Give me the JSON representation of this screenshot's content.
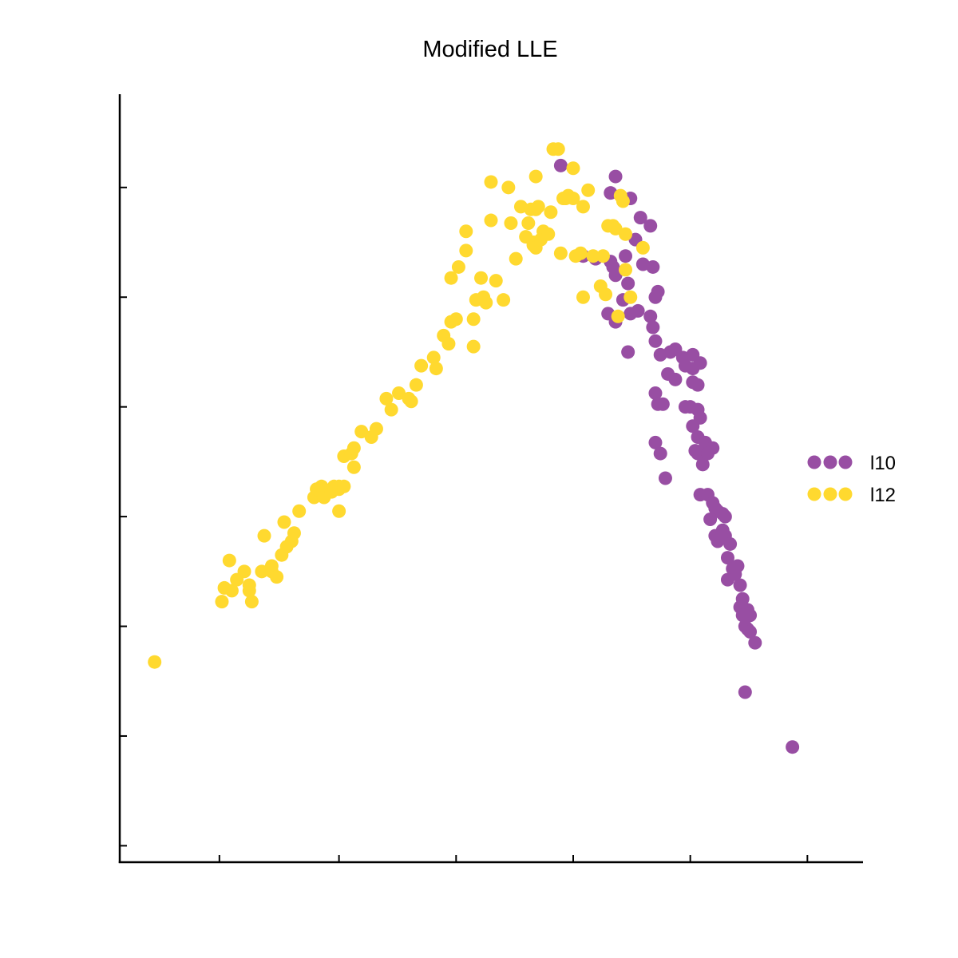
{
  "chart_data": {
    "type": "scatter",
    "title": "Modified LLE",
    "xlabel": "",
    "ylabel": "",
    "xlim": [
      -0.085,
      0.064
    ],
    "ylim": [
      -0.0545,
      0.0855
    ],
    "x_ticks": [
      -0.065,
      -0.041,
      -0.0175,
      0.006,
      0.0295,
      0.053
    ],
    "y_ticks": [
      -0.0515,
      -0.0315,
      -0.0115,
      0.0085,
      0.0285,
      0.0485,
      0.0685
    ],
    "show_tick_labels": false,
    "grid": false,
    "legend_position": "center-right",
    "series": [
      {
        "name": "l10",
        "color": "#984ea3",
        "points": [
          [
            0.0035,
            0.0725
          ],
          [
            0.0145,
            0.0705
          ],
          [
            0.0135,
            0.0675
          ],
          [
            0.0175,
            0.0665
          ],
          [
            0.0195,
            0.063
          ],
          [
            0.0215,
            0.0615
          ],
          [
            0.0185,
            0.059
          ],
          [
            0.008,
            0.056
          ],
          [
            0.0105,
            0.0555
          ],
          [
            0.0135,
            0.055
          ],
          [
            0.0165,
            0.056
          ],
          [
            0.02,
            0.0545
          ],
          [
            0.022,
            0.054
          ],
          [
            0.014,
            0.054
          ],
          [
            0.017,
            0.051
          ],
          [
            0.0145,
            0.0525
          ],
          [
            0.023,
            0.0495
          ],
          [
            0.0225,
            0.0485
          ],
          [
            0.016,
            0.048
          ],
          [
            0.0175,
            0.0455
          ],
          [
            0.019,
            0.046
          ],
          [
            0.013,
            0.0455
          ],
          [
            0.0145,
            0.044
          ],
          [
            0.0215,
            0.045
          ],
          [
            0.022,
            0.043
          ],
          [
            0.0225,
            0.0405
          ],
          [
            0.017,
            0.0385
          ],
          [
            0.0235,
            0.038
          ],
          [
            0.0255,
            0.0385
          ],
          [
            0.0265,
            0.039
          ],
          [
            0.028,
            0.0375
          ],
          [
            0.03,
            0.038
          ],
          [
            0.0285,
            0.036
          ],
          [
            0.03,
            0.0355
          ],
          [
            0.0315,
            0.0365
          ],
          [
            0.025,
            0.0345
          ],
          [
            0.0225,
            0.031
          ],
          [
            0.023,
            0.029
          ],
          [
            0.024,
            0.029
          ],
          [
            0.0265,
            0.0335
          ],
          [
            0.03,
            0.033
          ],
          [
            0.031,
            0.0325
          ],
          [
            0.0285,
            0.0285
          ],
          [
            0.0295,
            0.0285
          ],
          [
            0.031,
            0.028
          ],
          [
            0.0315,
            0.0265
          ],
          [
            0.03,
            0.025
          ],
          [
            0.031,
            0.023
          ],
          [
            0.0325,
            0.022
          ],
          [
            0.0305,
            0.0205
          ],
          [
            0.031,
            0.02
          ],
          [
            0.0315,
            0.02
          ],
          [
            0.034,
            0.021
          ],
          [
            0.033,
            0.02
          ],
          [
            0.0225,
            0.022
          ],
          [
            0.0235,
            0.02
          ],
          [
            0.0245,
            0.0155
          ],
          [
            0.032,
            0.018
          ],
          [
            0.0315,
            0.0125
          ],
          [
            0.033,
            0.0125
          ],
          [
            0.034,
            0.011
          ],
          [
            0.0345,
            0.01
          ],
          [
            0.035,
            0.0095
          ],
          [
            0.036,
            0.009
          ],
          [
            0.0365,
            0.0085
          ],
          [
            0.0335,
            0.008
          ],
          [
            0.036,
            0.006
          ],
          [
            0.0345,
            0.005
          ],
          [
            0.0365,
            0.005
          ],
          [
            0.035,
            0.004
          ],
          [
            0.0375,
            0.0035
          ],
          [
            0.037,
            0.001
          ],
          [
            0.038,
            -0.001
          ],
          [
            0.0385,
            -0.002
          ],
          [
            0.039,
            -0.0005
          ],
          [
            0.037,
            -0.003
          ],
          [
            0.0395,
            -0.004
          ],
          [
            0.04,
            -0.0065
          ],
          [
            0.0395,
            -0.008
          ],
          [
            0.041,
            -0.0085
          ],
          [
            0.04,
            -0.0095
          ],
          [
            0.0415,
            -0.0095
          ],
          [
            0.0405,
            -0.0115
          ],
          [
            0.041,
            -0.012
          ],
          [
            0.0415,
            -0.0125
          ],
          [
            0.0425,
            -0.0145
          ],
          [
            0.0405,
            -0.0235
          ],
          [
            0.05,
            -0.0335
          ]
        ]
      },
      {
        "name": "l12",
        "color": "#ffd92f",
        "points": [
          [
            -0.078,
            -0.018
          ],
          [
            -0.0645,
            -0.007
          ],
          [
            -0.064,
            -0.0045
          ],
          [
            -0.0625,
            -0.005
          ],
          [
            -0.063,
            0.0005
          ],
          [
            -0.0615,
            -0.003
          ],
          [
            -0.06,
            -0.0015
          ],
          [
            -0.059,
            -0.004
          ],
          [
            -0.059,
            -0.005
          ],
          [
            -0.0585,
            -0.007
          ],
          [
            -0.0565,
            -0.0015
          ],
          [
            -0.0545,
            -0.0015
          ],
          [
            -0.056,
            0.005
          ],
          [
            -0.0545,
            -0.0005
          ],
          [
            -0.0535,
            -0.0025
          ],
          [
            -0.0525,
            0.0015
          ],
          [
            -0.0515,
            0.003
          ],
          [
            -0.052,
            0.0075
          ],
          [
            -0.0505,
            0.004
          ],
          [
            -0.05,
            0.0055
          ],
          [
            -0.049,
            0.0095
          ],
          [
            -0.046,
            0.012
          ],
          [
            -0.0455,
            0.0135
          ],
          [
            -0.044,
            0.012
          ],
          [
            -0.0445,
            0.014
          ],
          [
            -0.0425,
            0.013
          ],
          [
            -0.042,
            0.014
          ],
          [
            -0.041,
            0.0135
          ],
          [
            -0.041,
            0.014
          ],
          [
            -0.04,
            0.014
          ],
          [
            -0.041,
            0.0095
          ],
          [
            -0.04,
            0.0195
          ],
          [
            -0.038,
            0.0175
          ],
          [
            -0.0385,
            0.02
          ],
          [
            -0.038,
            0.021
          ],
          [
            -0.0365,
            0.024
          ],
          [
            -0.0345,
            0.023
          ],
          [
            -0.0335,
            0.0245
          ],
          [
            -0.0315,
            0.03
          ],
          [
            -0.0305,
            0.028
          ],
          [
            -0.029,
            0.031
          ],
          [
            -0.027,
            0.03
          ],
          [
            -0.0265,
            0.0295
          ],
          [
            -0.0255,
            0.0325
          ],
          [
            -0.0245,
            0.036
          ],
          [
            -0.022,
            0.0375
          ],
          [
            -0.0215,
            0.0355
          ],
          [
            -0.02,
            0.0415
          ],
          [
            -0.019,
            0.04
          ],
          [
            -0.0185,
            0.044
          ],
          [
            -0.0185,
            0.052
          ],
          [
            -0.0175,
            0.0445
          ],
          [
            -0.017,
            0.054
          ],
          [
            -0.0155,
            0.057
          ],
          [
            -0.0155,
            0.0605
          ],
          [
            -0.014,
            0.0395
          ],
          [
            -0.014,
            0.0445
          ],
          [
            -0.0135,
            0.048
          ],
          [
            -0.0125,
            0.052
          ],
          [
            -0.012,
            0.0485
          ],
          [
            -0.0115,
            0.0475
          ],
          [
            -0.0105,
            0.0625
          ],
          [
            -0.0105,
            0.0695
          ],
          [
            -0.0095,
            0.0515
          ],
          [
            -0.008,
            0.048
          ],
          [
            -0.007,
            0.0685
          ],
          [
            -0.0065,
            0.062
          ],
          [
            -0.0055,
            0.0555
          ],
          [
            -0.0045,
            0.065
          ],
          [
            -0.0035,
            0.0595
          ],
          [
            -0.003,
            0.062
          ],
          [
            -0.0025,
            0.0645
          ],
          [
            -0.002,
            0.058
          ],
          [
            -0.002,
            0.0585
          ],
          [
            -0.0015,
            0.0575
          ],
          [
            -0.0015,
            0.0705
          ],
          [
            -0.0015,
            0.0645
          ],
          [
            -0.001,
            0.065
          ],
          [
            -0.0005,
            0.059
          ],
          [
            0.0,
            0.0605
          ],
          [
            0.001,
            0.06
          ],
          [
            0.0015,
            0.064
          ],
          [
            0.002,
            0.0755
          ],
          [
            0.003,
            0.0755
          ],
          [
            0.0035,
            0.0565
          ],
          [
            0.004,
            0.0665
          ],
          [
            0.0045,
            0.0665
          ],
          [
            0.005,
            0.067
          ],
          [
            0.006,
            0.0665
          ],
          [
            0.006,
            0.072
          ],
          [
            0.0065,
            0.056
          ],
          [
            0.0075,
            0.0565
          ],
          [
            0.008,
            0.065
          ],
          [
            0.008,
            0.0485
          ],
          [
            0.009,
            0.068
          ],
          [
            0.01,
            0.056
          ],
          [
            0.0115,
            0.0505
          ],
          [
            0.012,
            0.056
          ],
          [
            0.0125,
            0.049
          ],
          [
            0.013,
            0.0615
          ],
          [
            0.014,
            0.0615
          ],
          [
            0.0145,
            0.061
          ],
          [
            0.015,
            0.045
          ],
          [
            0.0165,
            0.0535
          ],
          [
            0.0175,
            0.0485
          ],
          [
            0.02,
            0.0575
          ],
          [
            0.0155,
            0.067
          ],
          [
            0.016,
            0.066
          ],
          [
            0.0165,
            0.06
          ]
        ]
      }
    ],
    "legend": [
      {
        "label": "l10",
        "color": "#984ea3"
      },
      {
        "label": "l12",
        "color": "#ffd92f"
      }
    ]
  }
}
